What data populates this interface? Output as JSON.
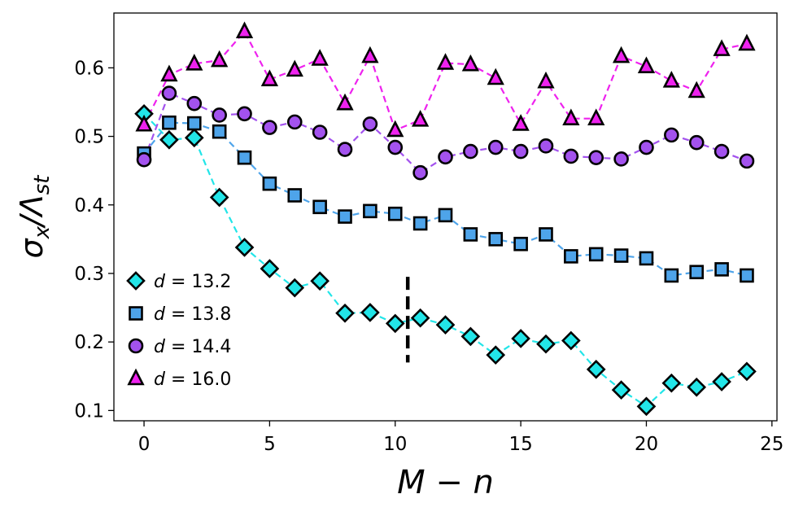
{
  "chart_data": {
    "type": "scatter",
    "xlabel": "M − n",
    "ylabel": "σx/Λst",
    "xlim": [
      -1.2,
      25.2
    ],
    "ylim": [
      0.085,
      0.68
    ],
    "xticks": [
      0,
      5,
      10,
      15,
      20,
      25
    ],
    "yticks": [
      0.1,
      0.2,
      0.3,
      0.4,
      0.5,
      0.6
    ],
    "xtick_labels": [
      "0",
      "5",
      "10",
      "15",
      "20",
      "25"
    ],
    "ytick_labels": [
      "0.1",
      "0.2",
      "0.3",
      "0.4",
      "0.5",
      "0.6"
    ],
    "legend_position": "lower-left",
    "annotations": [
      {
        "type": "vertical-dashed-line",
        "x": 10.5,
        "y_range": [
          0.17,
          0.295
        ],
        "color": "#000000"
      }
    ],
    "series": [
      {
        "name": "d = 13.2",
        "d_value": "13.2",
        "marker": "diamond",
        "fill": "#22e5e8",
        "line_color": "#22e5e8",
        "x": [
          0,
          1,
          2,
          3,
          4,
          5,
          6,
          7,
          8,
          9,
          10,
          11,
          12,
          13,
          14,
          15,
          16,
          17,
          18,
          19,
          20,
          21,
          22,
          23,
          24
        ],
        "values": [
          0.533,
          0.495,
          0.498,
          0.411,
          0.338,
          0.307,
          0.279,
          0.289,
          0.242,
          0.243,
          0.227,
          0.235,
          0.225,
          0.208,
          0.181,
          0.205,
          0.197,
          0.202,
          0.16,
          0.13,
          0.106,
          0.14,
          0.134,
          0.142,
          0.157
        ]
      },
      {
        "name": "d = 13.8",
        "d_value": "13.8",
        "marker": "square",
        "fill": "#4ea4ea",
        "line_color": "#4ea4ea",
        "x": [
          0,
          1,
          2,
          3,
          4,
          5,
          6,
          7,
          8,
          9,
          10,
          11,
          12,
          13,
          14,
          15,
          16,
          17,
          18,
          19,
          20,
          21,
          22,
          23,
          24
        ],
        "values": [
          0.475,
          0.52,
          0.519,
          0.507,
          0.469,
          0.431,
          0.414,
          0.397,
          0.383,
          0.391,
          0.387,
          0.373,
          0.385,
          0.357,
          0.35,
          0.343,
          0.357,
          0.325,
          0.328,
          0.326,
          0.322,
          0.297,
          0.302,
          0.306,
          0.297
        ]
      },
      {
        "name": "d = 14.4",
        "d_value": "14.4",
        "marker": "circle",
        "fill": "#a352ee",
        "line_color": "#a352ee",
        "x": [
          0,
          1,
          2,
          3,
          4,
          5,
          6,
          7,
          8,
          9,
          10,
          11,
          12,
          13,
          14,
          15,
          16,
          17,
          18,
          19,
          20,
          21,
          22,
          23,
          24
        ],
        "values": [
          0.466,
          0.563,
          0.548,
          0.531,
          0.533,
          0.513,
          0.521,
          0.506,
          0.481,
          0.518,
          0.484,
          0.447,
          0.47,
          0.478,
          0.484,
          0.478,
          0.486,
          0.471,
          0.469,
          0.467,
          0.484,
          0.502,
          0.491,
          0.478,
          0.464
        ]
      },
      {
        "name": "d = 16.0",
        "d_value": "16.0",
        "marker": "triangle",
        "fill": "#ee22ee",
        "line_color": "#ee22ee",
        "x": [
          0,
          1,
          2,
          3,
          4,
          5,
          6,
          7,
          8,
          9,
          10,
          11,
          12,
          13,
          14,
          15,
          16,
          17,
          18,
          19,
          20,
          21,
          22,
          23,
          24
        ],
        "values": [
          0.517,
          0.59,
          0.606,
          0.611,
          0.653,
          0.583,
          0.597,
          0.613,
          0.548,
          0.617,
          0.509,
          0.524,
          0.607,
          0.605,
          0.585,
          0.518,
          0.58,
          0.526,
          0.526,
          0.617,
          0.602,
          0.581,
          0.566,
          0.627,
          0.635
        ]
      }
    ]
  }
}
